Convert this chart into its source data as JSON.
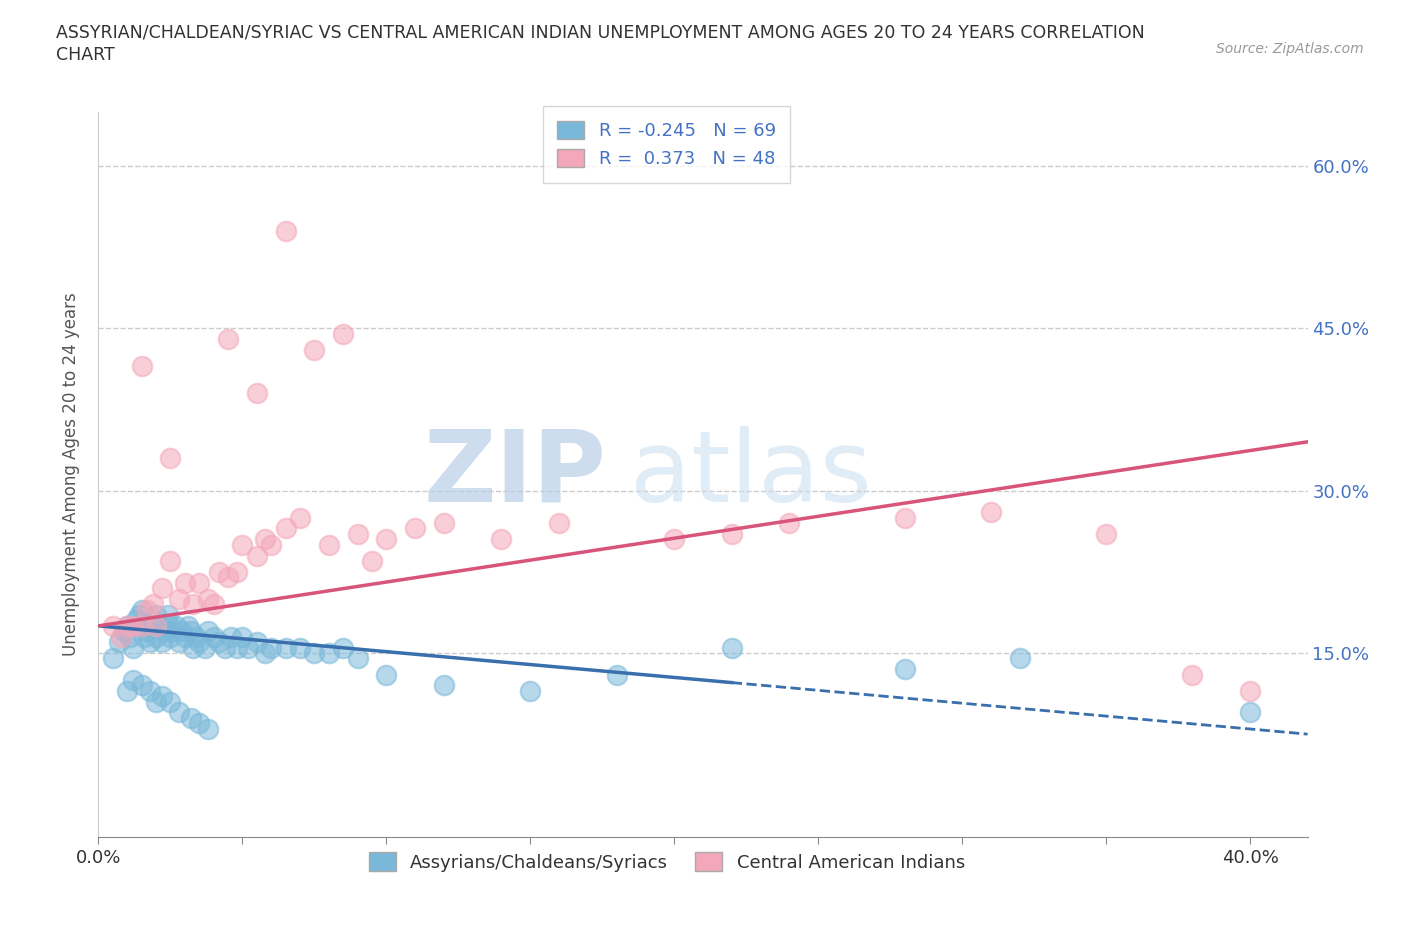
{
  "title_line1": "ASSYRIAN/CHALDEAN/SYRIAC VS CENTRAL AMERICAN INDIAN UNEMPLOYMENT AMONG AGES 20 TO 24 YEARS CORRELATION",
  "title_line2": "CHART",
  "source": "Source: ZipAtlas.com",
  "ylabel": "Unemployment Among Ages 20 to 24 years",
  "xlim": [
    0.0,
    0.42
  ],
  "ylim": [
    -0.02,
    0.65
  ],
  "ytick_positions": [
    0.15,
    0.3,
    0.45,
    0.6
  ],
  "ytick_labels": [
    "15.0%",
    "30.0%",
    "45.0%",
    "60.0%"
  ],
  "blue_R": -0.245,
  "blue_N": 69,
  "pink_R": 0.373,
  "pink_N": 48,
  "blue_color": "#7ab8d9",
  "pink_color": "#f4a7b9",
  "blue_line_color": "#3a6fad",
  "pink_line_color": "#d9547a",
  "legend_label_blue": "Assyrians/Chaldeans/Syriacs",
  "legend_label_pink": "Central American Indians",
  "watermark_ZIP": "ZIP",
  "watermark_atlas": "atlas",
  "background_color": "#ffffff",
  "blue_line_solid_end": 0.22,
  "blue_line_start_y": 0.175,
  "blue_line_end_y": 0.075,
  "pink_line_start_y": 0.175,
  "pink_line_end_y": 0.345,
  "blue_x": [
    0.005,
    0.007,
    0.009,
    0.01,
    0.011,
    0.012,
    0.013,
    0.014,
    0.015,
    0.015,
    0.016,
    0.017,
    0.018,
    0.019,
    0.02,
    0.02,
    0.021,
    0.022,
    0.023,
    0.024,
    0.025,
    0.025,
    0.026,
    0.027,
    0.028,
    0.029,
    0.03,
    0.031,
    0.032,
    0.033,
    0.034,
    0.035,
    0.037,
    0.038,
    0.04,
    0.042,
    0.044,
    0.046,
    0.048,
    0.05,
    0.052,
    0.055,
    0.058,
    0.06,
    0.065,
    0.07,
    0.075,
    0.08,
    0.085,
    0.09,
    0.01,
    0.012,
    0.015,
    0.018,
    0.02,
    0.022,
    0.025,
    0.028,
    0.032,
    0.035,
    0.038,
    0.1,
    0.12,
    0.15,
    0.18,
    0.22,
    0.28,
    0.32,
    0.4
  ],
  "blue_y": [
    0.145,
    0.16,
    0.17,
    0.175,
    0.165,
    0.155,
    0.18,
    0.185,
    0.19,
    0.175,
    0.165,
    0.17,
    0.16,
    0.175,
    0.185,
    0.165,
    0.175,
    0.16,
    0.17,
    0.185,
    0.175,
    0.165,
    0.17,
    0.175,
    0.16,
    0.17,
    0.165,
    0.175,
    0.17,
    0.155,
    0.165,
    0.16,
    0.155,
    0.17,
    0.165,
    0.16,
    0.155,
    0.165,
    0.155,
    0.165,
    0.155,
    0.16,
    0.15,
    0.155,
    0.155,
    0.155,
    0.15,
    0.15,
    0.155,
    0.145,
    0.115,
    0.125,
    0.12,
    0.115,
    0.105,
    0.11,
    0.105,
    0.095,
    0.09,
    0.085,
    0.08,
    0.13,
    0.12,
    0.115,
    0.13,
    0.155,
    0.135,
    0.145,
    0.095
  ],
  "pink_x": [
    0.005,
    0.008,
    0.01,
    0.012,
    0.015,
    0.017,
    0.019,
    0.02,
    0.022,
    0.025,
    0.028,
    0.03,
    0.033,
    0.035,
    0.038,
    0.04,
    0.042,
    0.045,
    0.048,
    0.05,
    0.055,
    0.058,
    0.06,
    0.065,
    0.07,
    0.08,
    0.09,
    0.1,
    0.11,
    0.12,
    0.14,
    0.16,
    0.2,
    0.22,
    0.24,
    0.28,
    0.31,
    0.35,
    0.38,
    0.4,
    0.015,
    0.025,
    0.045,
    0.055,
    0.065,
    0.075,
    0.085,
    0.095
  ],
  "pink_y": [
    0.175,
    0.165,
    0.175,
    0.175,
    0.175,
    0.19,
    0.195,
    0.175,
    0.21,
    0.235,
    0.2,
    0.215,
    0.195,
    0.215,
    0.2,
    0.195,
    0.225,
    0.22,
    0.225,
    0.25,
    0.24,
    0.255,
    0.25,
    0.265,
    0.275,
    0.25,
    0.26,
    0.255,
    0.265,
    0.27,
    0.255,
    0.27,
    0.255,
    0.26,
    0.27,
    0.275,
    0.28,
    0.26,
    0.13,
    0.115,
    0.415,
    0.33,
    0.44,
    0.39,
    0.54,
    0.43,
    0.445,
    0.235
  ]
}
